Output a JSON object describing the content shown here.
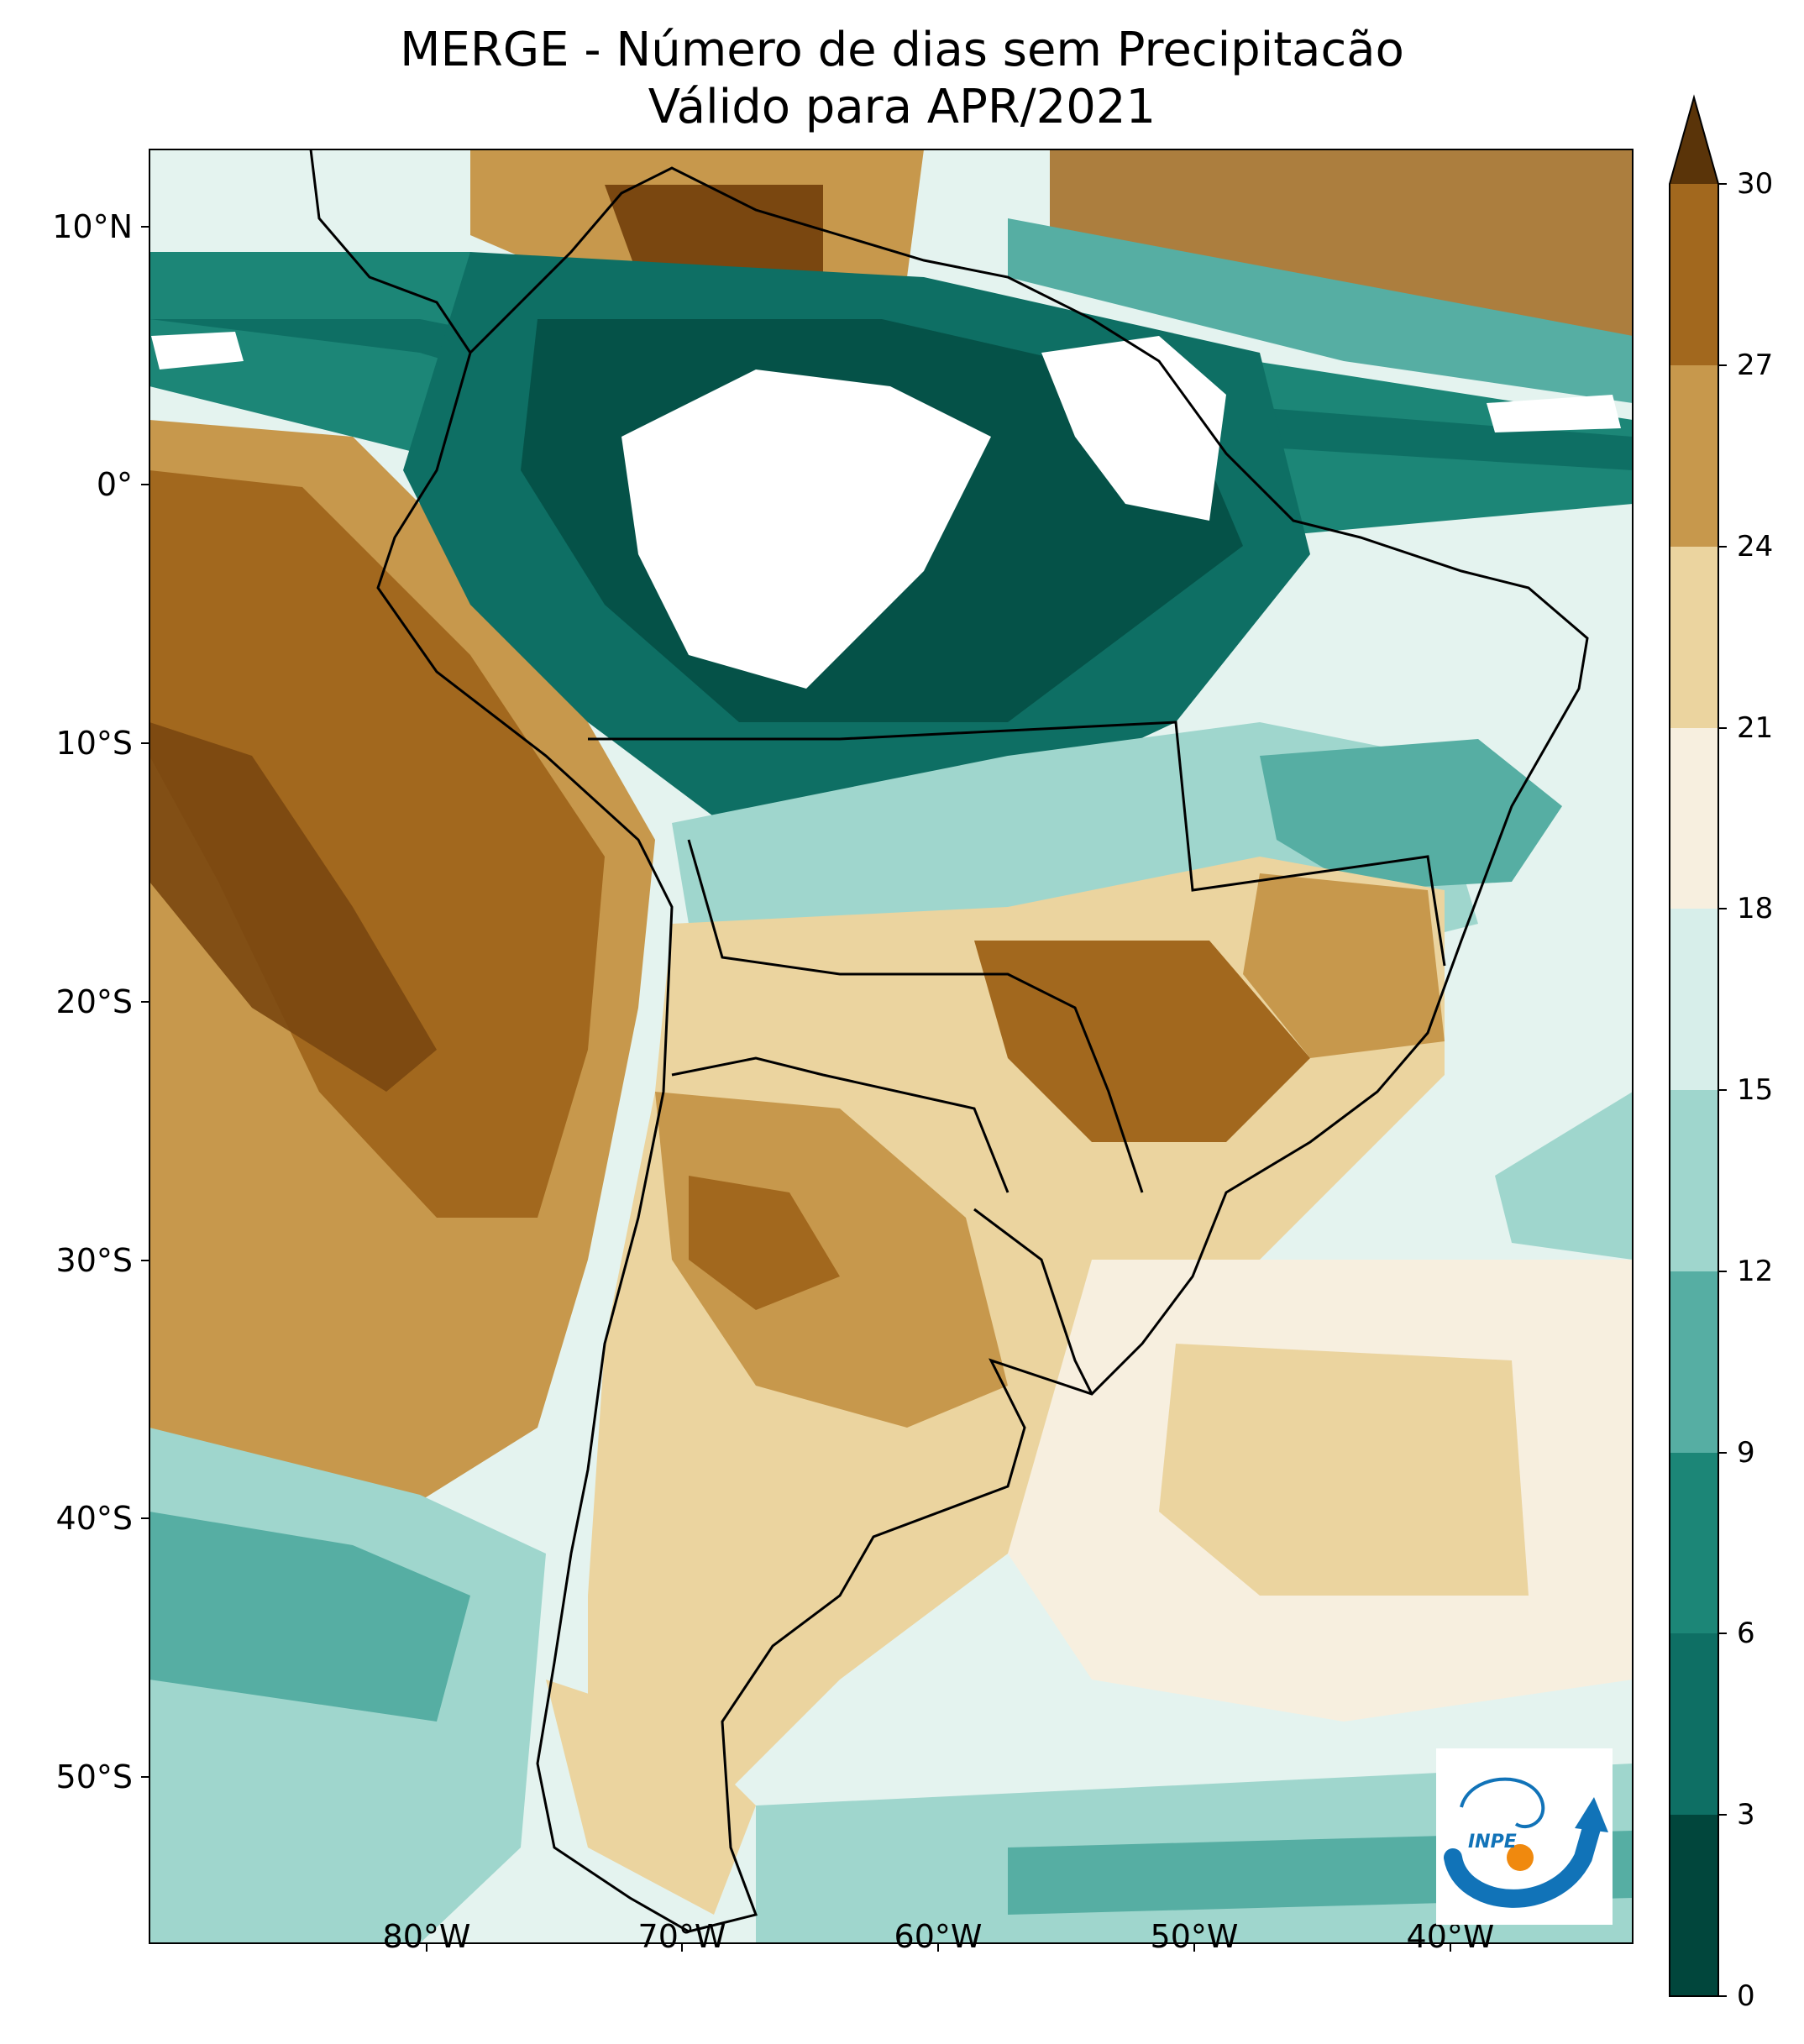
{
  "title": {
    "line1": "MERGE - Número de dias sem Precipitacão",
    "line2": "Válido para APR/2021"
  },
  "map": {
    "region": "South America",
    "variable": "Número de dias sem Precipitacão",
    "latitude_labels": [
      "10°N",
      "0°",
      "10°S",
      "20°S",
      "30°S",
      "40°S",
      "50°S"
    ],
    "longitude_labels": [
      "80°W",
      "70°W",
      "60°W",
      "50°W",
      "40°W"
    ]
  },
  "colorbar": {
    "ticks": [
      "0",
      "3",
      "6",
      "9",
      "12",
      "15",
      "18",
      "21",
      "24",
      "27",
      "30"
    ],
    "extend": "max",
    "colors": [
      "#01463c",
      "#0e6f64",
      "#1c8677",
      "#56aea3",
      "#9fd6cd",
      "#d7eeea",
      "#f7efdf",
      "#ebd49f",
      "#c7984c",
      "#a2681e",
      "#7a4710",
      "#5a3409"
    ]
  },
  "logo": {
    "text": "INPE",
    "colors": {
      "blue": "#1173b8",
      "orange": "#f0890e"
    }
  }
}
